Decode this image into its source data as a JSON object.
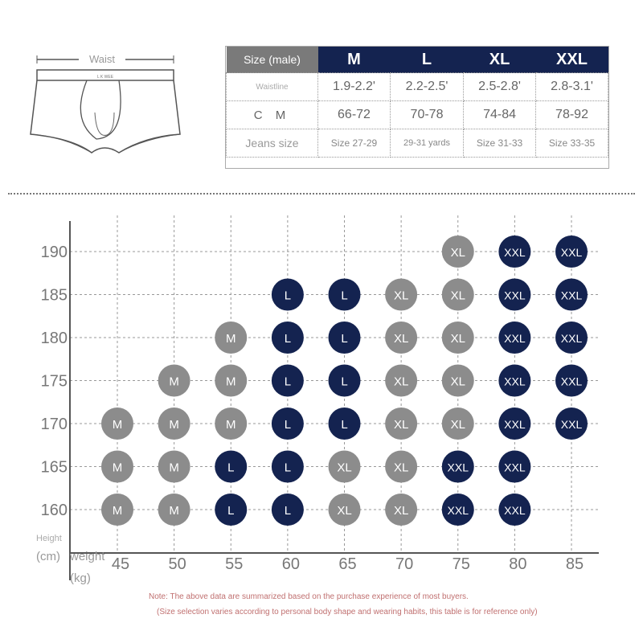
{
  "illustration": {
    "waist_label": "Waist",
    "band_text": "L K WEE"
  },
  "size_table": {
    "header_label": "Size (male)",
    "sizes": [
      "M",
      "L",
      "XL",
      "XXL"
    ],
    "rows": [
      {
        "label": "Waistline",
        "values": [
          "1.9-2.2'",
          "2.2-2.5'",
          "2.5-2.8'",
          "2.8-3.1'"
        ]
      },
      {
        "label": "C M",
        "values": [
          "66-72",
          "70-78",
          "74-84",
          "78-92"
        ]
      },
      {
        "label": "Jeans size",
        "values": [
          "Size 27-29",
          "29-31 yards",
          "Size 31-33",
          "Size 33-35"
        ]
      }
    ]
  },
  "colors": {
    "navy": "#142350",
    "gray": "#8c8c8c",
    "note": "#c07070"
  },
  "chart_data": {
    "type": "scatter",
    "y_label": "Height (cm)",
    "x_label": "weight (kg)",
    "y_label_parts": [
      "Height",
      "(cm)"
    ],
    "x_label_parts": [
      "weight",
      "(kg)"
    ],
    "x_ticks": [
      45,
      50,
      55,
      60,
      65,
      70,
      75,
      80,
      85
    ],
    "y_ticks": [
      160,
      165,
      170,
      175,
      180,
      185,
      190
    ],
    "grid": true,
    "size_colors": {
      "M": "gray",
      "L": "navy",
      "XL": "gray",
      "XXL": "navy"
    },
    "rows": [
      {
        "height": 190,
        "cells": {
          "75": "XL",
          "80": "XXL",
          "85": "XXL"
        }
      },
      {
        "height": 185,
        "cells": {
          "60": "L",
          "65": "L",
          "70": "XL",
          "75": "XL",
          "80": "XXL",
          "85": "XXL"
        }
      },
      {
        "height": 180,
        "cells": {
          "55": "M",
          "60": "L",
          "65": "L",
          "70": "XL",
          "75": "XL",
          "80": "XXL",
          "85": "XXL"
        }
      },
      {
        "height": 175,
        "cells": {
          "50": "M",
          "55": "M",
          "60": "L",
          "65": "L",
          "70": "XL",
          "75": "XL",
          "80": "XXL",
          "85": "XXL"
        }
      },
      {
        "height": 170,
        "cells": {
          "45": "M",
          "50": "M",
          "55": "M",
          "60": "L",
          "65": "L",
          "70": "XL",
          "75": "XL",
          "80": "XXL",
          "85": "XXL"
        }
      },
      {
        "height": 165,
        "cells": {
          "45": "M",
          "50": "M",
          "55": "L",
          "60": "L",
          "65": "XL",
          "70": "XL",
          "75": "XXL",
          "80": "XXL"
        }
      },
      {
        "height": 160,
        "cells": {
          "45": "M",
          "50": "M",
          "55": "L",
          "60": "L",
          "65": "XL",
          "70": "XL",
          "75": "XXL",
          "80": "XXL"
        }
      }
    ]
  },
  "notes": [
    "Note: The above data are summarized based on the purchase experience of most buyers.",
    "(Size selection varies according to personal body shape and wearing habits, this table is for reference only)"
  ]
}
